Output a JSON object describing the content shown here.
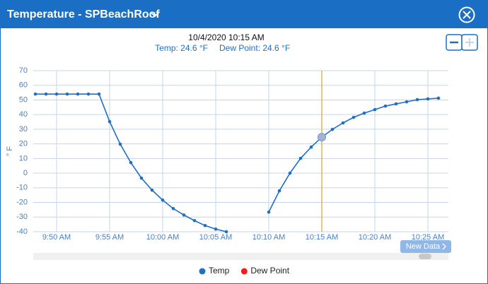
{
  "header": {
    "title": "Temperature - SPBeachRoof"
  },
  "tooltip": {
    "title": "10/4/2020 10:15 AM",
    "items": [
      "Temp: 24.6 °F",
      "Dew Point: 24.6 °F"
    ]
  },
  "button": {
    "label": "New Data"
  },
  "chart_data": {
    "type": "line",
    "y_label": "° F",
    "categories": [
      null,
      null,
      "9:50 AM",
      null,
      null,
      null,
      null,
      "9:55 AM",
      null,
      null,
      null,
      null,
      "10:00 AM",
      null,
      null,
      null,
      null,
      "10:05 AM",
      null,
      null,
      null,
      null,
      "10:10 AM",
      null,
      null,
      null,
      null,
      "10:15 AM",
      null,
      null,
      null,
      null,
      "10:20 AM",
      null,
      null,
      null,
      null,
      "10:25 AM",
      null
    ],
    "series": [
      {
        "name": "Temp",
        "color": "#1f6fc5",
        "values": [
          54,
          54,
          54,
          54,
          54,
          54,
          54,
          35.2,
          19.8,
          7.2,
          -3.4,
          -11.6,
          -18.4,
          -24.2,
          -28.6,
          -32.4,
          -35.8,
          -38.2,
          -40,
          null,
          null,
          null,
          -26.6,
          -12.1,
          0,
          10.1,
          17.8,
          24.6,
          29.9,
          34.3,
          38.1,
          41,
          43.4,
          45.8,
          47.3,
          48.7,
          50.2,
          50.7,
          51.2
        ]
      },
      {
        "name": "Dew Point",
        "color": "#ff1a1a",
        "values": [
          null,
          null,
          null,
          null,
          null,
          null,
          null,
          null,
          null,
          null,
          null,
          null,
          null,
          null,
          null,
          null,
          null,
          null,
          null,
          null,
          null,
          null,
          null,
          null,
          null,
          null,
          null,
          null,
          null,
          null,
          null,
          null,
          null,
          null,
          null,
          null,
          null,
          null,
          null
        ]
      }
    ],
    "ylim": [
      -40,
      70
    ],
    "yticks": [
      -40,
      -30,
      -20,
      -10,
      0,
      10,
      20,
      30,
      40,
      50,
      60,
      70
    ],
    "grid": true
  }
}
